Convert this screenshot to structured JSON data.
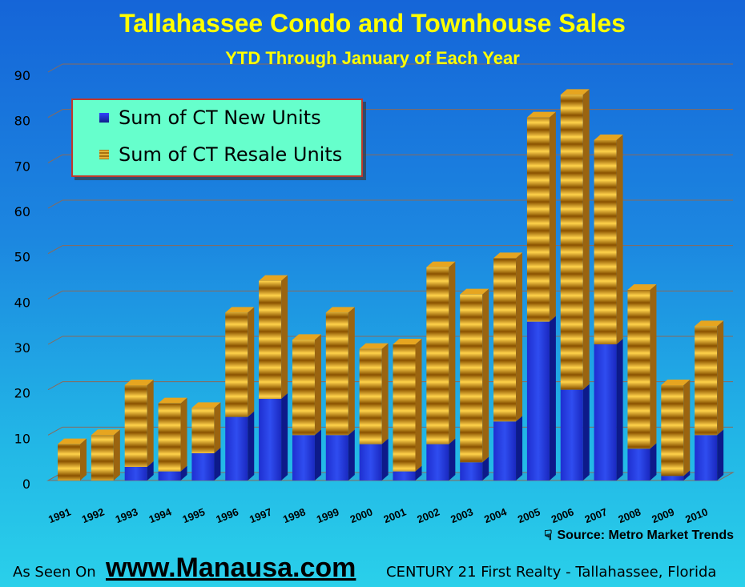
{
  "chart_data": {
    "type": "bar",
    "stacked": true,
    "title": "Tallahassee Condo and Townhouse Sales",
    "subtitle": "YTD Through January of Each Year",
    "xlabel": "",
    "ylabel": "",
    "ylim": [
      0,
      90
    ],
    "yticks": [
      "0",
      "10",
      "20",
      "30",
      "40",
      "50",
      "60",
      "70",
      "80",
      "90"
    ],
    "grid": true,
    "legend_position": "top-left",
    "categories": [
      "1991",
      "1992",
      "1993",
      "1994",
      "1995",
      "1996",
      "1997",
      "1998",
      "1999",
      "2000",
      "2001",
      "2002",
      "2003",
      "2004",
      "2005",
      "2006",
      "2007",
      "2008",
      "2009",
      "2010"
    ],
    "series": [
      {
        "name": "Sum of CT New Units",
        "color": "#1a2fd6",
        "values": [
          0,
          0,
          3,
          2,
          6,
          14,
          18,
          10,
          10,
          8,
          2,
          8,
          4,
          13,
          35,
          20,
          30,
          7,
          1,
          10
        ]
      },
      {
        "name": "Sum of CT Resale Units",
        "color": "#e8a21a",
        "values": [
          8,
          10,
          18,
          15,
          10,
          23,
          26,
          21,
          27,
          21,
          28,
          39,
          37,
          36,
          45,
          65,
          45,
          35,
          20,
          24
        ]
      }
    ]
  },
  "source": {
    "icon": "hand-pointer-icon",
    "text": "Source:  Metro Market Trends"
  },
  "footer": {
    "prefix": "As Seen On",
    "site": "www.Manausa.com",
    "suffix": "CENTURY 21 First Realty - Tallahassee,  Florida"
  }
}
